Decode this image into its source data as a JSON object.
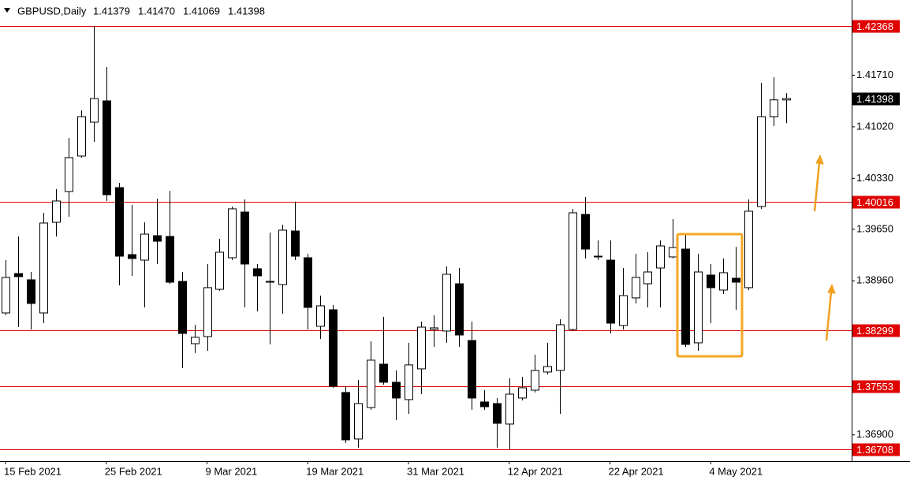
{
  "chart_data": {
    "type": "candlestick",
    "title": "GBPUSD,Daily",
    "header_values": [
      "1.41379",
      "1.41470",
      "1.41069",
      "1.41398"
    ],
    "categories": [
      "15 Feb 2021",
      null,
      null,
      null,
      null,
      null,
      null,
      null,
      "25 Feb 2021",
      null,
      null,
      null,
      null,
      null,
      null,
      null,
      "9 Mar 2021",
      null,
      null,
      null,
      null,
      null,
      null,
      null,
      "19 Mar 2021",
      null,
      null,
      null,
      null,
      null,
      null,
      null,
      "31 Mar 2021",
      null,
      null,
      null,
      null,
      null,
      null,
      null,
      "12 Apr 2021",
      null,
      null,
      null,
      null,
      null,
      null,
      null,
      "22 Apr 2021",
      null,
      null,
      null,
      null,
      null,
      null,
      null,
      "4 May 2021",
      null,
      null,
      null,
      null,
      null,
      null
    ],
    "ohlc": [
      [
        1.38531,
        1.39237,
        1.385,
        1.39006
      ],
      [
        1.39058,
        1.39554,
        1.38341,
        1.39016
      ],
      [
        1.38974,
        1.39079,
        1.3831,
        1.38658
      ],
      [
        1.38531,
        1.3987,
        1.38394,
        1.39733
      ],
      [
        1.39743,
        1.40186,
        1.39554,
        1.40028
      ],
      [
        1.40155,
        1.40871,
        1.39817,
        1.40608
      ],
      [
        1.40629,
        1.4124,
        1.40608,
        1.41156
      ],
      [
        1.41082,
        1.42368,
        1.40819,
        1.41398
      ],
      [
        1.41367,
        1.4182,
        1.40028,
        1.40112
      ],
      [
        1.40207,
        1.4027,
        1.389,
        1.3929
      ],
      [
        1.39311,
        1.39975,
        1.39027,
        1.39259
      ],
      [
        1.39237,
        1.39743,
        1.38605,
        1.39585
      ],
      [
        1.39564,
        1.4006,
        1.39185,
        1.3949
      ],
      [
        1.39554,
        1.40165,
        1.38921,
        1.38942
      ],
      [
        1.38953,
        1.39079,
        1.37793,
        1.38257
      ],
      [
        1.3812,
        1.38373,
        1.37994,
        1.38205
      ],
      [
        1.38215,
        1.39185,
        1.38025,
        1.38869
      ],
      [
        1.38847,
        1.39522,
        1.38826,
        1.39343
      ],
      [
        1.39269,
        1.39954,
        1.39237,
        1.39923
      ],
      [
        1.3988,
        1.40049,
        1.38605,
        1.39185
      ],
      [
        1.39122,
        1.39185,
        1.38552,
        1.39027
      ],
      [
        1.38953,
        1.39606,
        1.3811,
        1.38942
      ],
      [
        1.38911,
        1.39712,
        1.38521,
        1.39638
      ],
      [
        1.39627,
        1.40018,
        1.39237,
        1.3929
      ],
      [
        1.39269,
        1.39322,
        1.3831,
        1.38605
      ],
      [
        1.38352,
        1.38763,
        1.38183,
        1.38626
      ],
      [
        1.38573,
        1.38637,
        1.3753,
        1.37551
      ],
      [
        1.37467,
        1.37551,
        1.36792,
        1.36834
      ],
      [
        1.36845,
        1.37635,
        1.36729,
        1.37319
      ],
      [
        1.37266,
        1.38152,
        1.37235,
        1.37899
      ],
      [
        1.37846,
        1.38479,
        1.37572,
        1.37604
      ],
      [
        1.37604,
        1.37762,
        1.37098,
        1.37393
      ],
      [
        1.37372,
        1.38131,
        1.37182,
        1.37836
      ],
      [
        1.37783,
        1.38415,
        1.37445,
        1.38341
      ],
      [
        1.3831,
        1.385,
        1.38078,
        1.38331
      ],
      [
        1.38289,
        1.39153,
        1.38131,
        1.39048
      ],
      [
        1.38921,
        1.39132,
        1.38078,
        1.38236
      ],
      [
        1.38162,
        1.38415,
        1.37235,
        1.37393
      ],
      [
        1.3734,
        1.37498,
        1.37235,
        1.37277
      ],
      [
        1.37319,
        1.37393,
        1.36729,
        1.37055
      ],
      [
        1.37045,
        1.37656,
        1.36708,
        1.37445
      ],
      [
        1.37393,
        1.37677,
        1.37361,
        1.3753
      ],
      [
        1.37498,
        1.37973,
        1.37467,
        1.37762
      ],
      [
        1.37741,
        1.38131,
        1.37709,
        1.37814
      ],
      [
        1.37762,
        1.38447,
        1.37182,
        1.38373
      ],
      [
        1.3831,
        1.39923,
        1.38289,
        1.3987
      ],
      [
        1.39849,
        1.40081,
        1.39259,
        1.39385
      ],
      [
        1.3929,
        1.39501,
        1.39237,
        1.3928
      ],
      [
        1.39237,
        1.39501,
        1.38257,
        1.38394
      ],
      [
        1.38363,
        1.39132,
        1.3831,
        1.38763
      ],
      [
        1.38732,
        1.39322,
        1.38658,
        1.39006
      ],
      [
        1.38921,
        1.39343,
        1.38605,
        1.39079
      ],
      [
        1.39132,
        1.39501,
        1.38605,
        1.39427
      ],
      [
        1.3928,
        1.39786,
        1.39259,
        1.39406
      ],
      [
        1.39385,
        1.39596,
        1.38078,
        1.3811
      ],
      [
        1.38131,
        1.39322,
        1.38025,
        1.39079
      ],
      [
        1.39037,
        1.39185,
        1.38394,
        1.38869
      ],
      [
        1.38837,
        1.39259,
        1.38784,
        1.39069
      ],
      [
        1.38995,
        1.39417,
        1.38573,
        1.38942
      ],
      [
        1.38869,
        1.40049,
        1.38837,
        1.39891
      ],
      [
        1.39954,
        1.41609,
        1.39923,
        1.41156
      ],
      [
        1.41156,
        1.41683,
        1.41029,
        1.4138
      ],
      [
        1.41379,
        1.4147,
        1.41069,
        1.41398
      ]
    ],
    "ylim": [
      1.36549,
      1.42716
    ],
    "yticks": [
      {
        "value": 1.4171,
        "label": "1.41710"
      },
      {
        "value": 1.4102,
        "label": "1.41020"
      },
      {
        "value": 1.4033,
        "label": "1.40330"
      },
      {
        "value": 1.3965,
        "label": "1.39650"
      },
      {
        "value": 1.3896,
        "label": "1.38960"
      },
      {
        "value": 1.369,
        "label": "1.36900"
      }
    ],
    "levels": [
      1.42368,
      1.40016,
      1.38299,
      1.37553,
      1.36708
    ],
    "level_color": "#e00000",
    "last_price": 1.41398,
    "up_color": "#ffffff",
    "down_color": "#000000",
    "grid": false
  }
}
